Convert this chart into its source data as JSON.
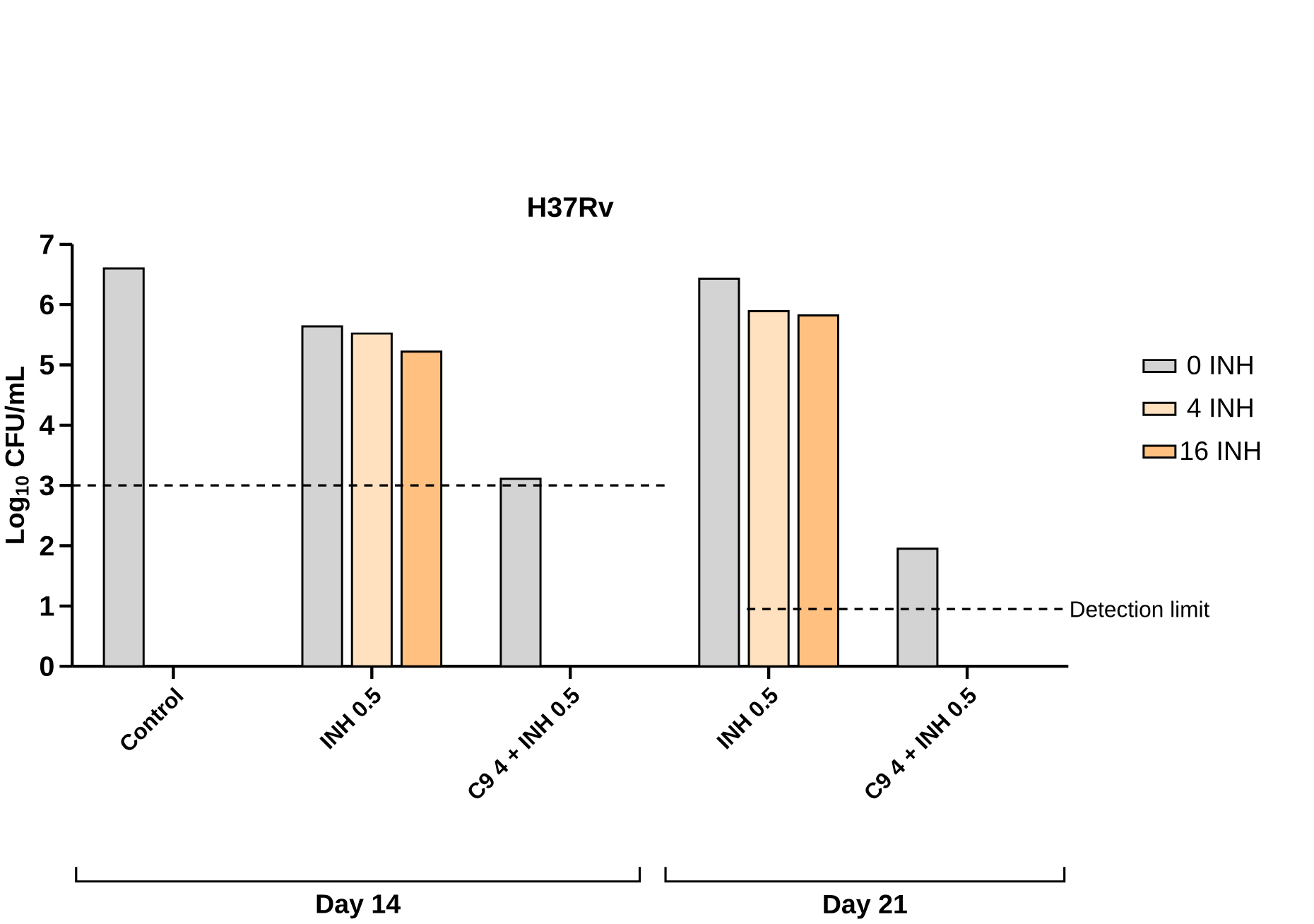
{
  "chart_data": {
    "type": "bar",
    "title": "H37Rv",
    "ylabel": "Log$_{10}$ CFU/mL",
    "categories": [
      "Control",
      "INH 0.5",
      "C9 4 + INH 0.5",
      "INH 0.5",
      "C9 4 + INH 0.5"
    ],
    "series": [
      {
        "name": "0 INH",
        "color": "#d3d3d3",
        "values": [
          6.6,
          5.64,
          3.11,
          6.43,
          1.95
        ]
      },
      {
        "name": "4 INH",
        "color": "#ffe1c0",
        "values": [
          null,
          5.52,
          null,
          5.89,
          null
        ]
      },
      {
        "name": "16 INH",
        "color": "#ffc080",
        "values": [
          null,
          5.22,
          null,
          5.82,
          null
        ]
      }
    ],
    "ylim": [
      0,
      7
    ],
    "yticks": [
      0,
      1,
      2,
      3,
      4,
      5,
      6,
      7
    ],
    "grid": false,
    "legend": "right",
    "ref_lines": [
      {
        "axis": "y",
        "value": 3,
        "line_style": "dashed"
      },
      {
        "axis": "y",
        "value": 0.95,
        "label": "Detection limit",
        "line_style": "dashed"
      }
    ],
    "annotations": [
      "Day 14",
      "Day 21"
    ]
  }
}
